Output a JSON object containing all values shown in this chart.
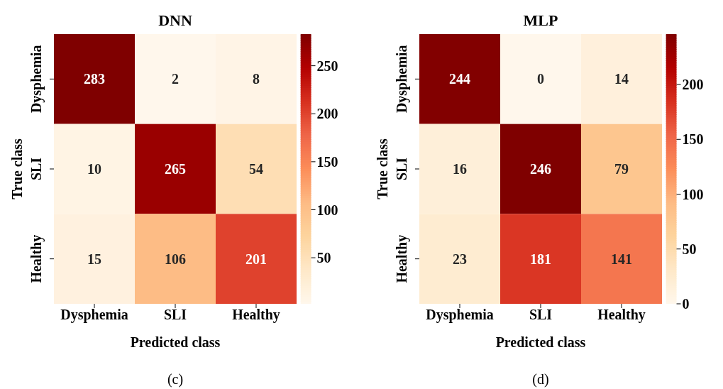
{
  "chart_data": [
    {
      "type": "heatmap",
      "title": "DNN",
      "xlabel": "Predicted class",
      "ylabel": "True class",
      "categories": [
        "Dysphemia",
        "SLI",
        "Healthy"
      ],
      "y_categories": [
        "Dysphemia",
        "SLI",
        "Healthy"
      ],
      "cells": [
        [
          283,
          2,
          8
        ],
        [
          10,
          265,
          54
        ],
        [
          15,
          106,
          201
        ]
      ],
      "data_labels": true,
      "clim": [
        2,
        283
      ],
      "cticks": [
        50,
        100,
        150,
        200,
        250
      ],
      "annotations": [
        "(c)"
      ]
    },
    {
      "type": "heatmap",
      "title": "MLP",
      "xlabel": "Predicted class",
      "ylabel": "True class",
      "categories": [
        "Dysphemia",
        "SLI",
        "Healthy"
      ],
      "y_categories": [
        "Dysphemia",
        "SLI",
        "Healthy"
      ],
      "cells": [
        [
          244,
          0,
          14
        ],
        [
          16,
          246,
          79
        ],
        [
          23,
          181,
          141
        ]
      ],
      "data_labels": true,
      "clim": [
        0,
        246
      ],
      "cticks": [
        0,
        50,
        100,
        150,
        200
      ],
      "annotations": [
        "(d)"
      ]
    }
  ]
}
